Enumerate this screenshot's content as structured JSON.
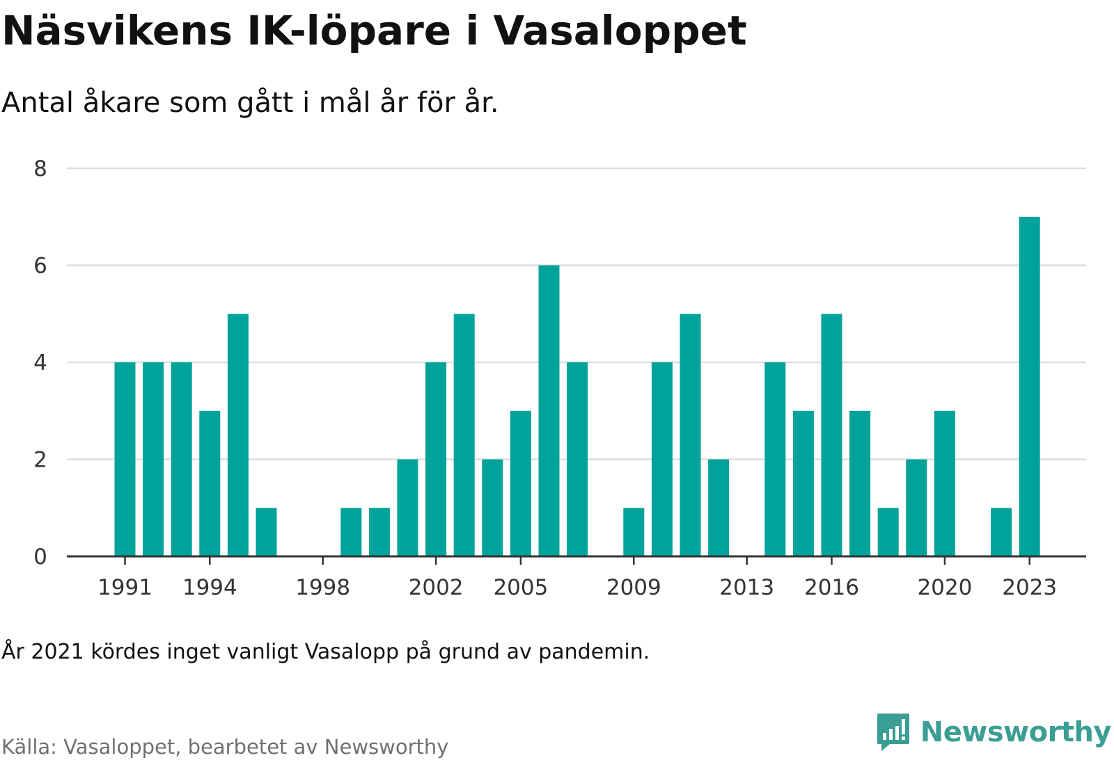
{
  "title": "Näsvikens IK-löpare i Vasaloppet",
  "subtitle": "Antal åkare som gått i mål år för år.",
  "note": "År 2021 kördes inget vanligt Vasalopp på grund av pandemin.",
  "source": "Källa: Vasaloppet, bearbetet av Newsworthy",
  "brand": {
    "name": "Newsworthy",
    "icon": "newsworthy-logo-icon",
    "color": "#3a9e94"
  },
  "colors": {
    "bar": "#00a39a",
    "grid": "#dddddd",
    "axis": "#333333"
  },
  "chart_data": {
    "type": "bar",
    "title": "Näsvikens IK-löpare i Vasaloppet",
    "subtitle": "Antal åkare som gått i mål år för år.",
    "xlabel": "",
    "ylabel": "",
    "ylim": [
      0,
      8
    ],
    "yticks": [
      0,
      2,
      4,
      6,
      8
    ],
    "xticks": [
      1991,
      1994,
      1998,
      2002,
      2005,
      2009,
      2013,
      2016,
      2020,
      2023
    ],
    "grid": true,
    "legend": "none",
    "x": [
      1991,
      1992,
      1993,
      1994,
      1995,
      1996,
      1997,
      1998,
      1999,
      2000,
      2001,
      2002,
      2003,
      2004,
      2005,
      2006,
      2007,
      2008,
      2009,
      2010,
      2011,
      2012,
      2013,
      2014,
      2015,
      2016,
      2017,
      2018,
      2019,
      2020,
      2021,
      2022,
      2023
    ],
    "values": [
      4,
      4,
      4,
      3,
      5,
      1,
      0,
      0,
      1,
      1,
      2,
      4,
      5,
      2,
      3,
      6,
      4,
      0,
      1,
      4,
      5,
      2,
      0,
      4,
      3,
      5,
      3,
      1,
      2,
      3,
      0,
      1,
      7
    ]
  }
}
